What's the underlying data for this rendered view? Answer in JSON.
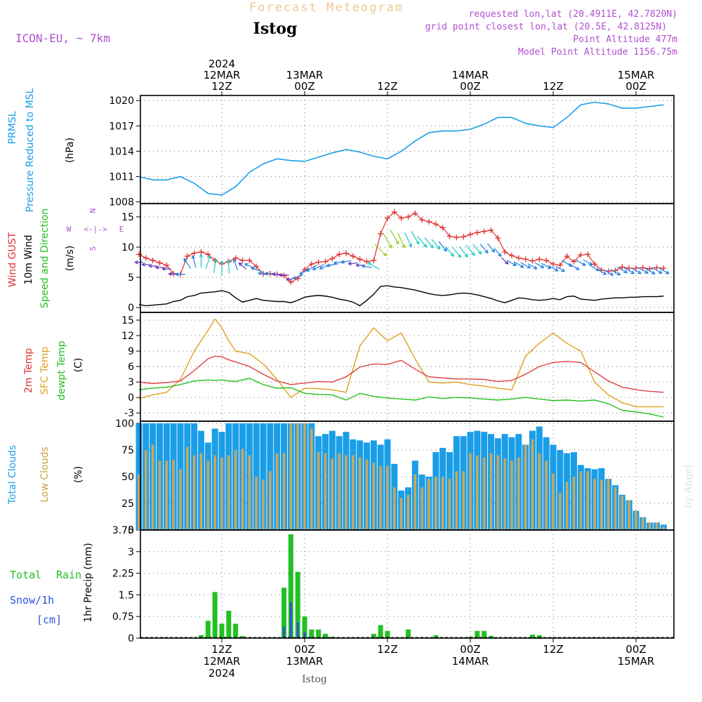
{
  "header": {
    "chart_title": "Forecast Meteogram",
    "location": "Istog",
    "model": "ICON-EU, ~ 7km",
    "requested": "requested lon,lat (20.4911E, 42.7820N)",
    "grid_point": "grid point closest lon,lat (20.5E, 42.8125N)",
    "point_altitude": "Point Altitude 477m",
    "model_altitude": "Model Point Altitude 1156.75m",
    "footer_location": "Istog",
    "credit": "by Angel"
  },
  "time_axis": {
    "top_labels": [
      {
        "h": 12,
        "lines": [
          "2024",
          "12MAR",
          "12Z"
        ]
      },
      {
        "h": 24,
        "lines": [
          "13MAR",
          "00Z"
        ]
      },
      {
        "h": 36,
        "lines": [
          "12Z"
        ]
      },
      {
        "h": 48,
        "lines": [
          "14MAR",
          "00Z"
        ]
      },
      {
        "h": 60,
        "lines": [
          "12Z"
        ]
      },
      {
        "h": 72,
        "lines": [
          "15MAR",
          "00Z"
        ]
      }
    ],
    "bottom_labels": [
      {
        "h": 12,
        "lines": [
          "12Z",
          "12MAR",
          "2024"
        ]
      },
      {
        "h": 24,
        "lines": [
          "00Z",
          "13MAR"
        ]
      },
      {
        "h": 36,
        "lines": [
          "12Z"
        ]
      },
      {
        "h": 48,
        "lines": [
          "00Z",
          "14MAR"
        ]
      },
      {
        "h": 60,
        "lines": [
          "12Z"
        ]
      },
      {
        "h": 72,
        "lines": [
          "00Z",
          "15MAR"
        ]
      }
    ]
  },
  "colors": {
    "pressure": "#1a9ee8",
    "gust": "#e03030",
    "wind": "#000000",
    "temp": "#e04040",
    "sfc": "#e0a020",
    "dew": "#20c020",
    "total_cloud": "#1a9ee8",
    "low_cloud": "#c8a860",
    "rain": "#22c022",
    "snow": "#3050e0",
    "purple": "#b050d0",
    "peach": "#f0c890"
  },
  "panels": {
    "pressure": {
      "labels": [
        "PRMSL",
        "Pressure Reduced to MSL",
        "(hPa)"
      ]
    },
    "wind": {
      "labels": [
        "Wind GUST",
        "10m Wind",
        "Speed and Direction",
        "(m/s)"
      ],
      "compass": [
        "N",
        "W",
        "<-|->",
        "E",
        "S"
      ]
    },
    "temp": {
      "labels": [
        "2m Temp",
        "SFC Temp",
        "dewpt Temp",
        "(C)"
      ]
    },
    "clouds": {
      "labels": [
        "Total Clouds",
        "Low Clouds",
        "(%)"
      ]
    },
    "precip": {
      "labels": [
        "Total",
        "Rain",
        "Snow/1h",
        "[cm]",
        "1hr Precip (mm)"
      ]
    }
  },
  "chart_data": [
    {
      "type": "line",
      "name": "PRMSL",
      "x_hours": [
        0,
        2,
        4,
        6,
        8,
        10,
        12,
        14,
        16,
        18,
        20,
        22,
        24,
        26,
        28,
        30,
        32,
        34,
        36,
        38,
        40,
        42,
        44,
        46,
        48,
        50,
        52,
        54,
        56,
        58,
        60,
        62,
        64,
        66,
        68,
        70,
        72,
        74,
        76
      ],
      "values": [
        1011.0,
        1010.6,
        1010.6,
        1011.0,
        1010.2,
        1009.0,
        1008.8,
        1009.8,
        1011.5,
        1012.5,
        1013.1,
        1012.9,
        1012.8,
        1013.3,
        1013.8,
        1014.2,
        1013.9,
        1013.4,
        1013.1,
        1014.0,
        1015.2,
        1016.2,
        1016.4,
        1016.4,
        1016.6,
        1017.2,
        1018.0,
        1018.0,
        1017.3,
        1017.0,
        1016.8,
        1018.0,
        1019.5,
        1019.8,
        1019.6,
        1019.1,
        1019.1,
        1019.3,
        1019.5
      ],
      "yticks": [
        1008,
        1011,
        1014,
        1017,
        1020
      ],
      "ylim": [
        1007.8,
        1020.6
      ]
    },
    {
      "type": "line",
      "name": "Wind",
      "x_hours": [
        0,
        1,
        2,
        3,
        4,
        5,
        6,
        7,
        8,
        9,
        10,
        11,
        12,
        13,
        14,
        15,
        16,
        17,
        18,
        19,
        20,
        21,
        22,
        23,
        24,
        25,
        26,
        27,
        28,
        29,
        30,
        31,
        32,
        33,
        34,
        35,
        36,
        37,
        38,
        39,
        40,
        41,
        42,
        43,
        44,
        45,
        46,
        47,
        48,
        49,
        50,
        51,
        52,
        53,
        54,
        55,
        56,
        57,
        58,
        59,
        60,
        61,
        62,
        63,
        64,
        65,
        66,
        67,
        68,
        69,
        70,
        71,
        72,
        73,
        74,
        75,
        76
      ],
      "gust": [
        8.8,
        8.2,
        7.8,
        7.4,
        7.0,
        5.6,
        5.5,
        8.5,
        9.0,
        9.2,
        8.8,
        7.8,
        7.2,
        7.6,
        8.2,
        7.8,
        7.8,
        6.8,
        5.6,
        5.6,
        5.5,
        5.3,
        4.2,
        4.8,
        6.3,
        7.2,
        7.5,
        7.6,
        8.1,
        8.8,
        9.0,
        8.5,
        8.0,
        7.6,
        7.8,
        12.2,
        14.8,
        15.8,
        14.8,
        15.0,
        15.6,
        14.5,
        14.2,
        13.8,
        13.2,
        11.8,
        11.6,
        11.7,
        12.1,
        12.4,
        12.6,
        12.8,
        11.5,
        9.2,
        8.6,
        8.2,
        8.0,
        7.7,
        8.0,
        7.8,
        7.2,
        7.0,
        8.5,
        7.6,
        8.7,
        8.8,
        7.2,
        6.2,
        6.0,
        6.1,
        6.7,
        6.5,
        6.5,
        6.6,
        6.4,
        6.6,
        6.5
      ],
      "speed": [
        0.5,
        0.3,
        0.4,
        0.5,
        0.6,
        1.0,
        1.2,
        1.8,
        2.0,
        2.4,
        2.5,
        2.6,
        2.8,
        2.5,
        1.6,
        0.9,
        1.2,
        1.5,
        1.2,
        1.1,
        1.0,
        1.0,
        0.8,
        1.2,
        1.7,
        1.9,
        2.0,
        1.9,
        1.7,
        1.4,
        1.2,
        0.9,
        0.3,
        1.2,
        2.2,
        3.5,
        3.6,
        3.4,
        3.3,
        3.1,
        2.9,
        2.6,
        2.3,
        2.1,
        2.0,
        2.1,
        2.3,
        2.4,
        2.3,
        2.1,
        1.8,
        1.5,
        1.1,
        0.8,
        1.2,
        1.6,
        1.5,
        1.3,
        1.2,
        1.3,
        1.5,
        1.3,
        1.8,
        1.9,
        1.4,
        1.3,
        1.2,
        1.4,
        1.5,
        1.6,
        1.6,
        1.7,
        1.7,
        1.8,
        1.8,
        1.8,
        1.9
      ],
      "dir_deg": [
        90,
        90,
        90,
        90,
        90,
        90,
        90,
        145,
        165,
        180,
        200,
        190,
        180,
        175,
        160,
        130,
        115,
        110,
        100,
        100,
        95,
        90,
        80,
        70,
        60,
        60,
        65,
        70,
        80,
        80,
        80,
        85,
        90,
        100,
        120,
        315,
        330,
        330,
        335,
        335,
        330,
        320,
        320,
        320,
        320,
        320,
        320,
        320,
        320,
        320,
        320,
        320,
        320,
        315,
        300,
        300,
        300,
        300,
        300,
        300,
        300,
        300,
        300,
        300,
        300,
        300,
        300,
        300,
        300,
        300,
        300,
        300,
        300,
        300,
        300,
        300,
        300
      ],
      "yticks": [
        0,
        5,
        10,
        15
      ],
      "ylim": [
        -0.8,
        17.2
      ]
    },
    {
      "type": "line",
      "name": "Temperature",
      "x_hours": [
        0,
        2,
        4,
        6,
        8,
        10,
        11,
        12,
        13,
        14,
        16,
        18,
        20,
        22,
        24,
        26,
        28,
        30,
        32,
        34,
        36,
        38,
        40,
        42,
        44,
        46,
        48,
        50,
        52,
        54,
        56,
        58,
        60,
        62,
        64,
        66,
        68,
        70,
        72,
        74,
        76
      ],
      "t2m": [
        3.0,
        2.7,
        2.9,
        3.2,
        5.2,
        7.5,
        8.0,
        7.9,
        7.3,
        6.9,
        6.0,
        4.5,
        3.2,
        2.5,
        2.8,
        3.1,
        3.0,
        4.0,
        5.9,
        6.5,
        6.4,
        7.2,
        5.5,
        4.0,
        3.8,
        3.6,
        3.6,
        3.5,
        3.1,
        3.3,
        4.5,
        6.0,
        6.8,
        7.0,
        6.8,
        5.0,
        3.2,
        2.0,
        1.5,
        1.2,
        1.0
      ],
      "sfc": [
        -0.2,
        0.5,
        1.0,
        3.5,
        9.0,
        13.0,
        15.2,
        13.5,
        11.0,
        9.0,
        8.5,
        6.5,
        3.5,
        0.0,
        1.8,
        1.7,
        1.5,
        1.0,
        10.0,
        13.5,
        11.0,
        12.5,
        7.5,
        3.0,
        2.8,
        3.0,
        2.5,
        2.2,
        1.8,
        1.5,
        8.0,
        10.5,
        12.5,
        10.5,
        9.0,
        3.0,
        0.5,
        -1.0,
        -1.8,
        -1.8,
        -1.8
      ],
      "dew": [
        1.5,
        1.8,
        2.0,
        2.5,
        3.2,
        3.4,
        3.3,
        3.4,
        3.2,
        3.1,
        3.7,
        2.5,
        1.8,
        1.9,
        0.8,
        0.6,
        0.5,
        -0.5,
        0.8,
        0.2,
        -0.1,
        -0.3,
        -0.5,
        0.1,
        -0.2,
        0.0,
        -0.1,
        -0.3,
        -0.5,
        -0.3,
        0.0,
        -0.3,
        -0.6,
        -0.5,
        -0.7,
        -0.5,
        -1.2,
        -2.5,
        -2.8,
        -3.2,
        -3.8
      ],
      "yticks": [
        -3,
        0,
        3,
        6,
        9,
        12,
        15
      ],
      "ylim": [
        -4.6,
        16.5
      ]
    },
    {
      "type": "bar",
      "name": "Clouds",
      "x_hours": [
        0,
        1,
        2,
        3,
        4,
        5,
        6,
        7,
        8,
        9,
        10,
        11,
        12,
        13,
        14,
        15,
        16,
        17,
        18,
        19,
        20,
        21,
        22,
        23,
        24,
        25,
        26,
        27,
        28,
        29,
        30,
        31,
        32,
        33,
        34,
        35,
        36,
        37,
        38,
        39,
        40,
        41,
        42,
        43,
        44,
        45,
        46,
        47,
        48,
        49,
        50,
        51,
        52,
        53,
        54,
        55,
        56,
        57,
        58,
        59,
        60,
        61,
        62,
        63,
        64,
        65,
        66,
        67,
        68,
        69,
        70,
        71,
        72,
        73,
        74,
        75,
        76
      ],
      "total": [
        100,
        100,
        100,
        100,
        100,
        100,
        100,
        100,
        100,
        93,
        82,
        95,
        92,
        100,
        100,
        100,
        100,
        100,
        100,
        100,
        100,
        100,
        100,
        100,
        100,
        100,
        88,
        90,
        93,
        88,
        92,
        85,
        84,
        82,
        84,
        80,
        85,
        62,
        37,
        40,
        65,
        52,
        50,
        73,
        77,
        73,
        88,
        88,
        92,
        93,
        92,
        90,
        86,
        90,
        87,
        90,
        80,
        93,
        97,
        87,
        80,
        75,
        72,
        73,
        61,
        58,
        57,
        58,
        48,
        42,
        33,
        28,
        18,
        12,
        7,
        7,
        5
      ],
      "low": [
        52,
        75,
        80,
        65,
        65,
        66,
        57,
        78,
        70,
        72,
        65,
        70,
        68,
        70,
        75,
        76,
        70,
        50,
        47,
        55,
        72,
        72,
        100,
        100,
        100,
        95,
        73,
        72,
        67,
        72,
        70,
        70,
        68,
        66,
        63,
        60,
        60,
        40,
        30,
        33,
        52,
        40,
        48,
        50,
        50,
        48,
        55,
        55,
        72,
        70,
        68,
        72,
        70,
        67,
        65,
        68,
        80,
        85,
        72,
        65,
        53,
        35,
        45,
        50,
        55,
        55,
        48,
        47,
        48,
        40,
        32,
        28,
        18,
        12,
        7,
        7,
        3
      ],
      "yticks": [
        0,
        25,
        50,
        75,
        100
      ],
      "ylim": [
        0,
        102
      ]
    },
    {
      "type": "bar",
      "name": "Precipitation",
      "x_hours": [
        0,
        1,
        2,
        3,
        4,
        5,
        6,
        7,
        8,
        9,
        10,
        11,
        12,
        13,
        14,
        15,
        16,
        17,
        18,
        19,
        20,
        21,
        22,
        23,
        24,
        25,
        26,
        27,
        28,
        29,
        30,
        31,
        32,
        33,
        34,
        35,
        36,
        37,
        38,
        39,
        40,
        41,
        42,
        43,
        44,
        45,
        46,
        47,
        48,
        49,
        50,
        51,
        52,
        53,
        54,
        55,
        56,
        57,
        58,
        59,
        60,
        61,
        62,
        63,
        64,
        65,
        66,
        67,
        68,
        69,
        70,
        71,
        72,
        73,
        74,
        75,
        76
      ],
      "rain": [
        0,
        0,
        0,
        0,
        0,
        0,
        0,
        0,
        0,
        0.1,
        0.6,
        1.6,
        0.5,
        0.95,
        0.5,
        0.07,
        0,
        0,
        0,
        0,
        0,
        1.75,
        3.6,
        2.3,
        0.75,
        0.3,
        0.3,
        0.15,
        0.05,
        0,
        0,
        0,
        0,
        0,
        0.15,
        0.45,
        0.25,
        0,
        0,
        0.3,
        0,
        0,
        0,
        0.1,
        0,
        0,
        0,
        0,
        0.05,
        0.25,
        0.25,
        0.08,
        0,
        0,
        0,
        0,
        0,
        0.12,
        0.1,
        0,
        0,
        0,
        0,
        0,
        0,
        0,
        0,
        0,
        0,
        0,
        0,
        0,
        0,
        0,
        0,
        0,
        0
      ],
      "snow": [
        0,
        0,
        0,
        0,
        0,
        0,
        0,
        0,
        0,
        0,
        0,
        0,
        0,
        0,
        0,
        0,
        0,
        0,
        0,
        0,
        0,
        0.4,
        1.25,
        0.55,
        0.2,
        0.03,
        0.03,
        0.02,
        0,
        0,
        0,
        0,
        0,
        0,
        0,
        0,
        0,
        0,
        0,
        0,
        0,
        0,
        0,
        0,
        0,
        0,
        0,
        0,
        0,
        0,
        0,
        0,
        0,
        0,
        0,
        0,
        0,
        0,
        0,
        0,
        0,
        0,
        0,
        0,
        0,
        0,
        0,
        0,
        0,
        0,
        0,
        0,
        0,
        0,
        0,
        0,
        0
      ],
      "yticks": [
        0,
        0.75,
        1.5,
        2.25,
        3,
        3.75
      ],
      "ytick_labels": [
        "0",
        "0.75",
        "1.5",
        "2.25",
        "3",
        "3.75"
      ],
      "ylim": [
        0,
        3.75
      ]
    }
  ]
}
